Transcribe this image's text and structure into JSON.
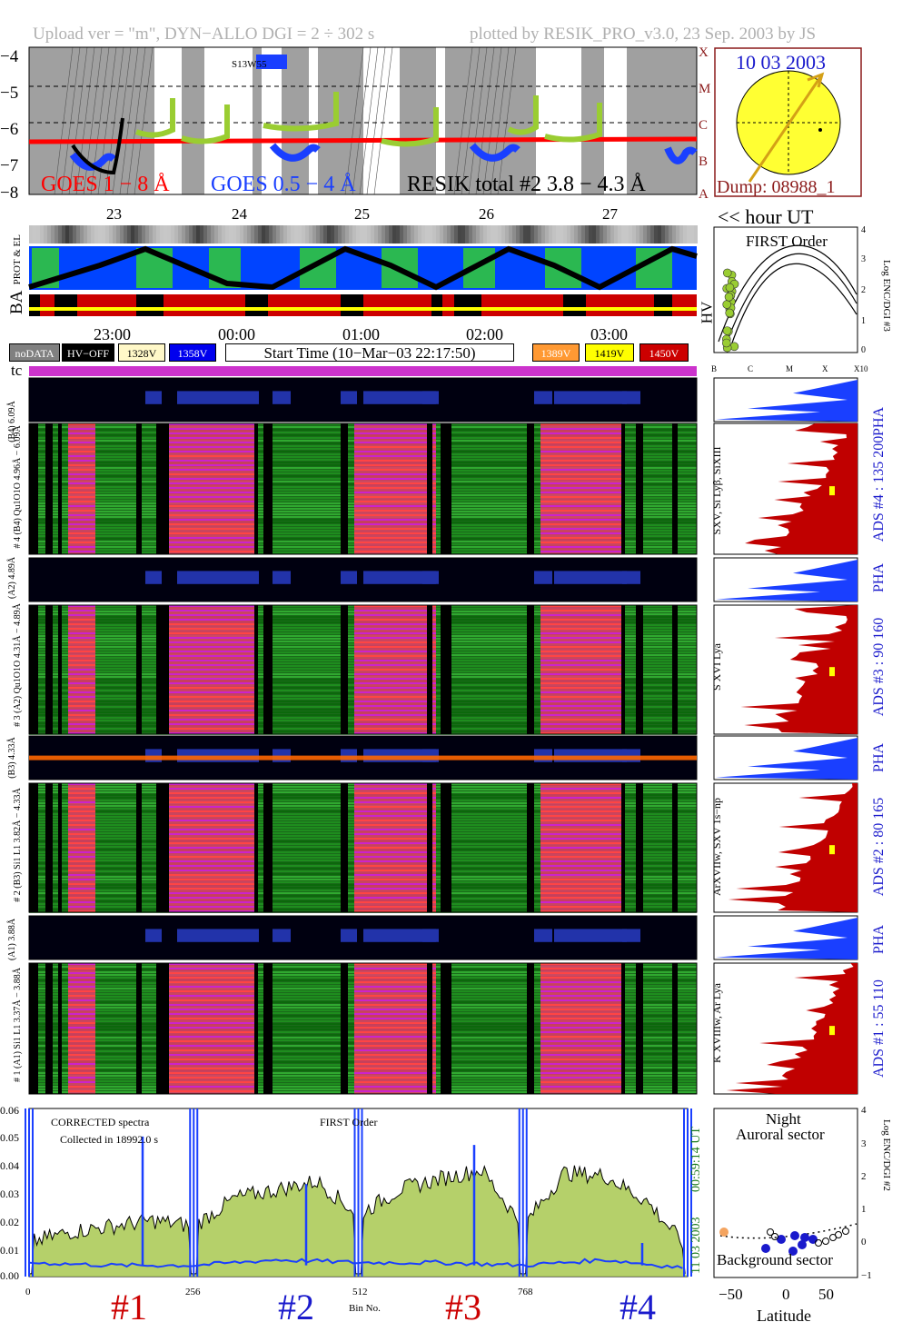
{
  "header": {
    "left": "Upload ver = \"m\", DYN−ALLO DGI =   2 ÷ 302 s",
    "right": "plotted by RESIK_PRO_v3.0, 23 Sep. 2003 by JS"
  },
  "goes_panel": {
    "y_ticks": [
      "−4",
      "−5",
      "−6",
      "−7",
      "−8"
    ],
    "class_labels": [
      "X",
      "M",
      "C",
      "B",
      "A"
    ],
    "legend_goes_long": "GOES 1 − 8 Å",
    "legend_goes_short": "GOES 0.5 − 4 Å",
    "legend_resik": "RESIK total #2  3.8 − 4.3 Å",
    "region_label": "S13W55",
    "day_labels": [
      "23",
      "24",
      "25",
      "26",
      "27"
    ],
    "colors": {
      "goes_long": "#ff0000",
      "goes_short": "#1a3fff",
      "resik": "#9acd32"
    }
  },
  "sun_panel": {
    "date": "10 03 2003",
    "dump": "Dump: 08988_1",
    "hour_label": "<< hour UT"
  },
  "status_panel": {
    "labels": [
      "PROT & EL",
      "BA"
    ],
    "hv_label": "HV"
  },
  "first_order_panel": {
    "title": "FIRST Order",
    "y_label": "Log ENC/DGI #3",
    "y_ticks": [
      "4",
      "3",
      "2",
      "1",
      "0"
    ],
    "x_ticks": [
      "B",
      "C",
      "M",
      "X",
      "X10"
    ]
  },
  "time_axis": {
    "ticks": [
      "23:00",
      "00:00",
      "01:00",
      "02:00",
      "03:00"
    ],
    "start_time": "Start Time (10−Mar−03 22:17:50)"
  },
  "legend_boxes": [
    {
      "label": "noDATA",
      "color": "#808080"
    },
    {
      "label": "HV−OFF",
      "color": "#000000"
    },
    {
      "label": "1328V",
      "color": "#fff8c8"
    },
    {
      "label": "1358V",
      "color": "#0000ee"
    },
    {
      "label": "1389V",
      "color": "#ff9933"
    },
    {
      "label": "1419V",
      "color": "#ffff00"
    },
    {
      "label": "1450V",
      "color": "#cc0000"
    }
  ],
  "tc_label": "tc",
  "channels": [
    {
      "pha_label": "(B4) 6.09Å",
      "spec_label": "# 4 (B4) Qu1O1O 4.96Å − 6.09Å",
      "lines": "SXV, Si Lyβ, SiXIII",
      "ads": "ADS #4 :   135 200"
    },
    {
      "pha_label": "(A2) 4.89Å",
      "spec_label": "# 3 (A2) Qu1O1O 4.31Å − 4.89Å",
      "lines": "S XVI Lya",
      "ads": "ADS #3 :    90 160"
    },
    {
      "pha_label": "(B3) 4.33Å",
      "spec_label": "# 2 (B3) Si1 L1 3.82Å − 4.33Å",
      "lines": "ArXVIIw, SXV 1s−np",
      "ads": "ADS #2 :    80 165"
    },
    {
      "pha_label": "(A1) 3.88Å",
      "spec_label": "# 1 (A1) Si1 L1 3.37Å − 3.88Å",
      "lines": "K XVIIIw, Ar Lya",
      "ads": "ADS #1 :    55 110"
    }
  ],
  "pha_label": "PHA",
  "spectrum_panel": {
    "title_left": "CORRECTED spectra",
    "collected": "Collected in 18992.0 s",
    "title_mid": "FIRST Order",
    "right_date": "11 03 2003",
    "right_time": "00:59:14 UT",
    "y_ticks": [
      "0.06",
      "0.05",
      "0.04",
      "0.03",
      "0.02",
      "0.01",
      "0.00"
    ],
    "x_ticks": [
      "0",
      "256",
      "512",
      "768"
    ],
    "x_label": "Bin No.",
    "section_labels": [
      {
        "text": "#1",
        "color": "#cc0000"
      },
      {
        "text": "#2",
        "color": "#1a1acc"
      },
      {
        "text": "#3",
        "color": "#cc0000"
      },
      {
        "text": "#4",
        "color": "#1a1acc"
      }
    ]
  },
  "orbit_panel": {
    "title_night": "Night",
    "title_auroral": "Auroral sector",
    "title_background": "Background sector",
    "x_label": "Latitude",
    "x_ticks": [
      "−50",
      "0",
      "50"
    ],
    "y_label": "Log ENC/DGI #2",
    "y_ticks": [
      "4",
      "3",
      "2",
      "1",
      "0",
      "−1"
    ]
  },
  "chart_data": {
    "type": "line",
    "title": "CORRECTED spectra",
    "xlabel": "Bin No.",
    "ylabel": "",
    "xlim": [
      0,
      1024
    ],
    "ylim": [
      0,
      0.06
    ],
    "series": [
      {
        "name": "",
        "x": [
          0,
          64,
          128,
          192,
          256,
          320,
          384,
          448,
          512,
          576,
          640,
          704,
          768,
          832,
          896,
          960,
          1024
        ],
        "values": [
          0.012,
          0.016,
          0.018,
          0.02,
          0.018,
          0.028,
          0.031,
          0.034,
          0.022,
          0.031,
          0.035,
          0.038,
          0.018,
          0.037,
          0.036,
          0.027,
          0.01
        ]
      },
      {
        "name": "",
        "x": [
          0,
          128,
          256,
          384,
          512,
          640,
          768,
          896,
          1024
        ],
        "values": [
          0.005,
          0.004,
          0.004,
          0.006,
          0.005,
          0.005,
          0.004,
          0.006,
          0.003
        ]
      }
    ]
  }
}
